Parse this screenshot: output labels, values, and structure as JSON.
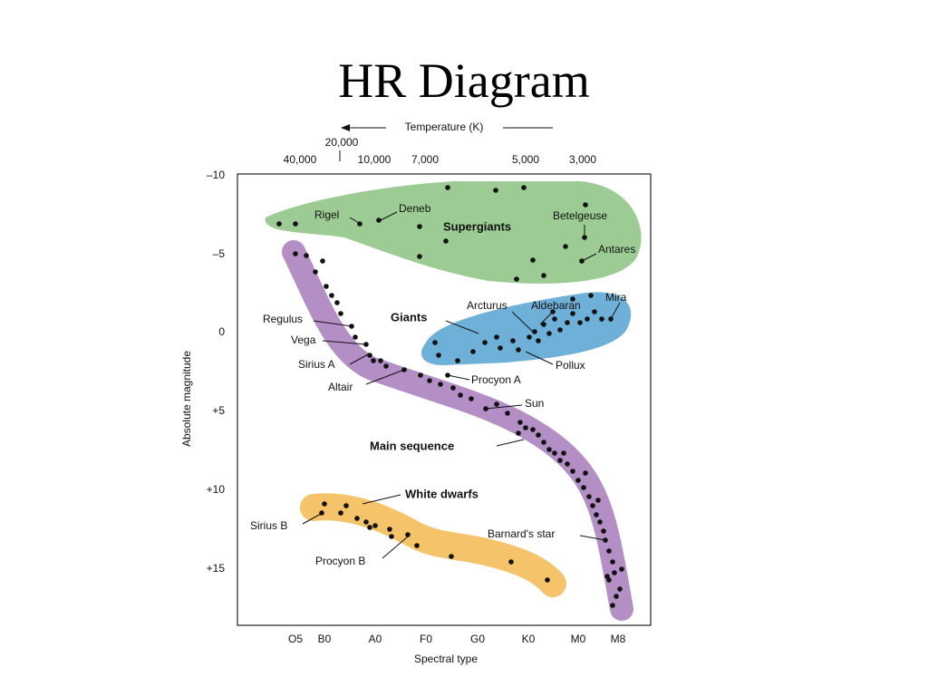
{
  "title": "HR Diagram",
  "top_axis": {
    "label": "Temperature (K)",
    "ticks": [
      "40,000",
      "20,000",
      "10,000",
      "7,000",
      "5,000",
      "3,000"
    ]
  },
  "left_axis": {
    "label": "Absolute magnitude",
    "ticks": [
      "–10",
      "–5",
      "0",
      "+5",
      "+10",
      "+15"
    ]
  },
  "bottom_axis": {
    "label": "Spectral type",
    "ticks": [
      "O5",
      "B0",
      "A0",
      "F0",
      "G0",
      "K0",
      "M0",
      "M8"
    ]
  },
  "regions": [
    "Supergiants",
    "Giants",
    "Main sequence",
    "White dwarfs"
  ],
  "stars": [
    "Rigel",
    "Deneb",
    "Betelgeuse",
    "Antares",
    "Arcturus",
    "Aldebaran",
    "Mira",
    "Pollux",
    "Regulus",
    "Vega",
    "Sirius A",
    "Altair",
    "Procyon A",
    "Sun",
    "Barnard's star",
    "Sirius B",
    "Procyon B"
  ]
}
